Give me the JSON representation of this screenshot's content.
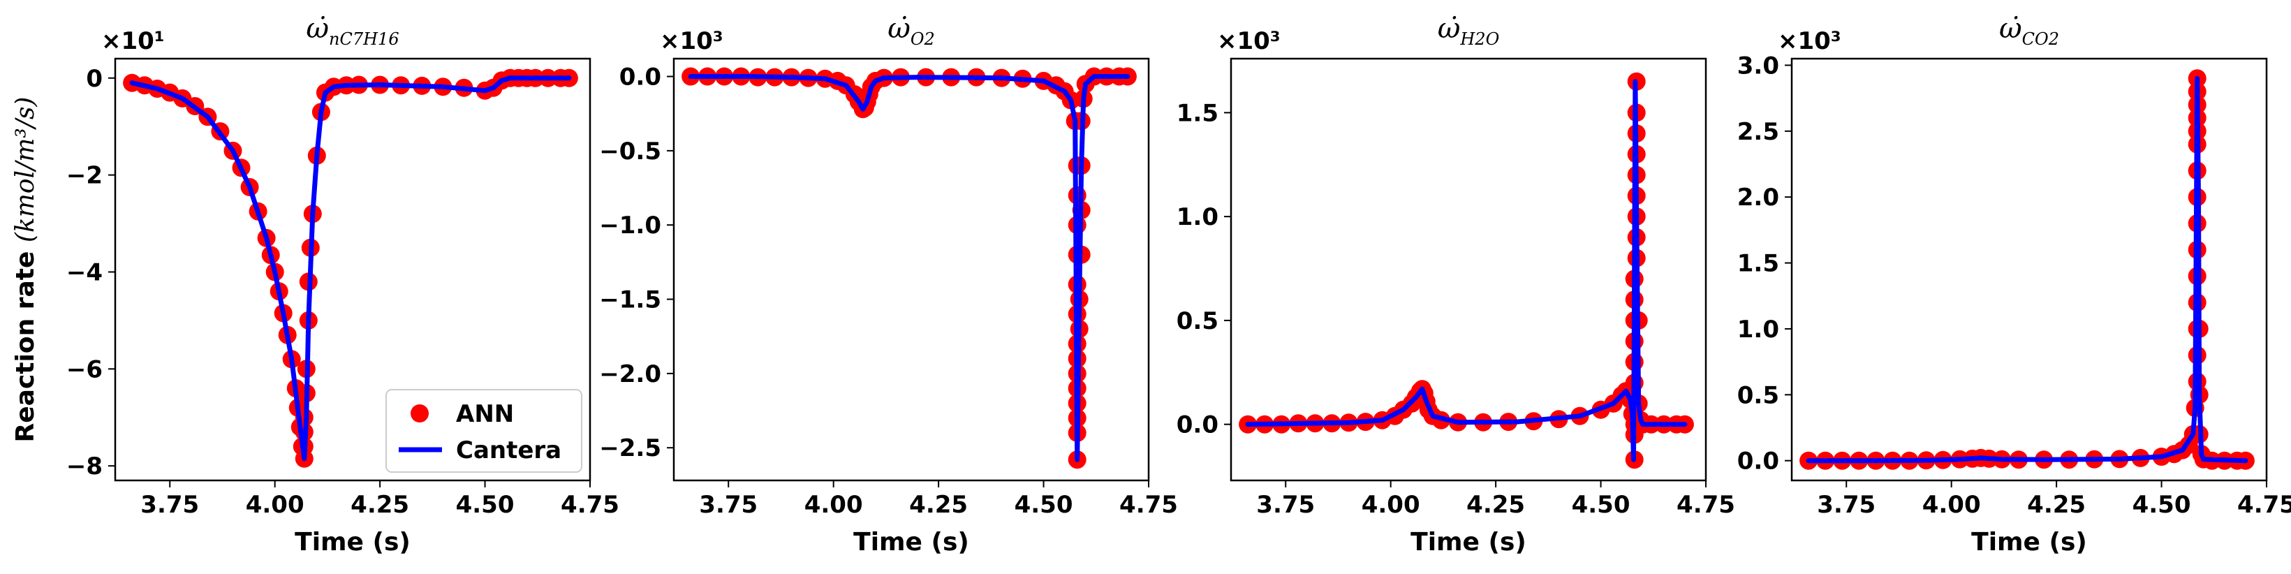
{
  "colors": {
    "ann": "#ff0000",
    "cantera": "#0000ff",
    "axis": "#000000",
    "background": "#ffffff"
  },
  "legend": {
    "location": "lower-right",
    "entries": [
      "ANN",
      "Cantera"
    ]
  },
  "chart_data": [
    {
      "type": "line",
      "title": "ω̇ nC7H16",
      "title_base": "ω̇",
      "title_sub": "nC7H16",
      "ylabel_text": "Reaction rate",
      "ylabel_unit": "(kmol/m³/s)",
      "xlabel": "Time (s)",
      "multiplier": "×10¹",
      "xlim": [
        3.62,
        4.75
      ],
      "ylim": [
        -8.3,
        0.4
      ],
      "xticks": [
        3.75,
        4.0,
        4.25,
        4.5,
        4.75
      ],
      "xtick_labels": [
        "3.75",
        "4.00",
        "4.25",
        "4.50",
        "4.75"
      ],
      "yticks": [
        0,
        -2,
        -4,
        -6,
        -8
      ],
      "ytick_labels": [
        "0",
        "−2",
        "−4",
        "−6",
        "−8"
      ],
      "series": [
        {
          "name": "ANN",
          "style": "markers",
          "x": [
            3.66,
            3.69,
            3.72,
            3.75,
            3.78,
            3.81,
            3.84,
            3.87,
            3.9,
            3.92,
            3.94,
            3.96,
            3.98,
            3.99,
            4.0,
            4.01,
            4.02,
            4.03,
            4.04,
            4.05,
            4.055,
            4.06,
            4.065,
            4.07,
            4.07,
            4.07,
            4.07,
            4.075,
            4.075,
            4.08,
            4.08,
            4.085,
            4.09,
            4.1,
            4.11,
            4.12,
            4.14,
            4.17,
            4.2,
            4.25,
            4.3,
            4.35,
            4.4,
            4.45,
            4.5,
            4.52,
            4.54,
            4.56,
            4.58,
            4.6,
            4.62,
            4.65,
            4.68,
            4.7
          ],
          "y": [
            -0.1,
            -0.15,
            -0.22,
            -0.3,
            -0.42,
            -0.58,
            -0.8,
            -1.1,
            -1.5,
            -1.85,
            -2.25,
            -2.75,
            -3.3,
            -3.65,
            -4.0,
            -4.4,
            -4.85,
            -5.3,
            -5.8,
            -6.4,
            -6.8,
            -7.2,
            -7.6,
            -7.85,
            -7.6,
            -7.3,
            -7.0,
            -6.5,
            -6.0,
            -5.0,
            -4.2,
            -3.5,
            -2.8,
            -1.6,
            -0.7,
            -0.3,
            -0.18,
            -0.15,
            -0.14,
            -0.14,
            -0.15,
            -0.16,
            -0.18,
            -0.2,
            -0.26,
            -0.2,
            -0.05,
            0.0,
            0.0,
            0.0,
            0.0,
            0.0,
            0.0,
            0.0
          ]
        },
        {
          "name": "Cantera",
          "style": "line",
          "x": [
            3.66,
            3.72,
            3.78,
            3.84,
            3.9,
            3.94,
            3.98,
            4.0,
            4.02,
            4.04,
            4.06,
            4.07,
            4.075,
            4.08,
            4.09,
            4.1,
            4.11,
            4.12,
            4.14,
            4.17,
            4.25,
            4.4,
            4.5,
            4.52,
            4.54,
            4.56,
            4.7
          ],
          "y": [
            -0.1,
            -0.22,
            -0.42,
            -0.8,
            -1.5,
            -2.25,
            -3.3,
            -4.0,
            -4.85,
            -5.8,
            -7.2,
            -7.85,
            -7.0,
            -5.0,
            -2.8,
            -1.6,
            -0.7,
            -0.3,
            -0.18,
            -0.15,
            -0.14,
            -0.18,
            -0.26,
            -0.2,
            -0.05,
            0.0,
            0.0
          ]
        }
      ]
    },
    {
      "type": "line",
      "title": "ω̇ O2",
      "title_base": "ω̇",
      "title_sub": "O2",
      "xlabel": "Time (s)",
      "multiplier": "×10³",
      "xlim": [
        3.62,
        4.75
      ],
      "ylim": [
        -2.72,
        0.12
      ],
      "xticks": [
        3.75,
        4.0,
        4.25,
        4.5,
        4.75
      ],
      "xtick_labels": [
        "3.75",
        "4.00",
        "4.25",
        "4.50",
        "4.75"
      ],
      "yticks": [
        0.0,
        -0.5,
        -1.0,
        -1.5,
        -2.0,
        -2.5
      ],
      "ytick_labels": [
        "0.0",
        "−0.5",
        "−1.0",
        "−1.5",
        "−2.0",
        "−2.5"
      ],
      "series": [
        {
          "name": "ANN",
          "style": "markers",
          "x": [
            3.66,
            3.7,
            3.74,
            3.78,
            3.82,
            3.86,
            3.9,
            3.94,
            3.98,
            4.01,
            4.03,
            4.05,
            4.06,
            4.07,
            4.075,
            4.08,
            4.085,
            4.09,
            4.1,
            4.12,
            4.16,
            4.22,
            4.28,
            4.34,
            4.4,
            4.45,
            4.5,
            4.53,
            4.55,
            4.565,
            4.575,
            4.58,
            4.58,
            4.58,
            4.58,
            4.58,
            4.58,
            4.58,
            4.58,
            4.58,
            4.58,
            4.58,
            4.58,
            4.58,
            4.58,
            4.585,
            4.585,
            4.59,
            4.59,
            4.59,
            4.59,
            4.595,
            4.6,
            4.62,
            4.65,
            4.68,
            4.7
          ],
          "y": [
            0.0,
            0.0,
            0.0,
            0.0,
            -0.005,
            -0.005,
            -0.005,
            -0.01,
            -0.015,
            -0.03,
            -0.06,
            -0.12,
            -0.17,
            -0.22,
            -0.21,
            -0.17,
            -0.12,
            -0.07,
            -0.03,
            -0.01,
            -0.005,
            -0.005,
            -0.005,
            -0.005,
            -0.01,
            -0.015,
            -0.03,
            -0.06,
            -0.1,
            -0.16,
            -0.3,
            -0.6,
            -0.8,
            -1.0,
            -1.2,
            -1.4,
            -1.6,
            -1.8,
            -2.0,
            -2.2,
            -2.4,
            -2.58,
            -2.3,
            -2.1,
            -1.9,
            -1.7,
            -1.5,
            -1.2,
            -0.9,
            -0.6,
            -0.3,
            -0.15,
            -0.05,
            0.0,
            0.0,
            0.0,
            0.0
          ]
        },
        {
          "name": "Cantera",
          "style": "line",
          "x": [
            3.66,
            3.8,
            3.9,
            3.98,
            4.03,
            4.06,
            4.07,
            4.08,
            4.09,
            4.1,
            4.12,
            4.2,
            4.4,
            4.5,
            4.55,
            4.565,
            4.575,
            4.58,
            4.585,
            4.59,
            4.595,
            4.6,
            4.62,
            4.7
          ],
          "y": [
            0.0,
            0.0,
            -0.005,
            -0.015,
            -0.06,
            -0.17,
            -0.22,
            -0.17,
            -0.07,
            -0.03,
            -0.01,
            -0.005,
            -0.01,
            -0.03,
            -0.1,
            -0.16,
            -0.3,
            -2.58,
            -1.5,
            -0.6,
            -0.15,
            -0.05,
            0.0,
            0.0
          ]
        }
      ]
    },
    {
      "type": "line",
      "title": "ω̇ H2O",
      "title_base": "ω̇",
      "title_sub": "H2O",
      "xlabel": "Time (s)",
      "multiplier": "×10³",
      "xlim": [
        3.62,
        4.75
      ],
      "ylim": [
        -0.27,
        1.76
      ],
      "xticks": [
        3.75,
        4.0,
        4.25,
        4.5,
        4.75
      ],
      "xtick_labels": [
        "3.75",
        "4.00",
        "4.25",
        "4.50",
        "4.75"
      ],
      "yticks": [
        0.0,
        0.5,
        1.0,
        1.5
      ],
      "ytick_labels": [
        "0.0",
        "0.5",
        "1.0",
        "1.5"
      ],
      "series": [
        {
          "name": "ANN",
          "style": "markers",
          "x": [
            3.66,
            3.7,
            3.74,
            3.78,
            3.82,
            3.86,
            3.9,
            3.94,
            3.98,
            4.01,
            4.03,
            4.05,
            4.06,
            4.07,
            4.075,
            4.08,
            4.085,
            4.09,
            4.1,
            4.12,
            4.16,
            4.22,
            4.28,
            4.34,
            4.4,
            4.45,
            4.5,
            4.53,
            4.55,
            4.56,
            4.57,
            4.575,
            4.58,
            4.58,
            4.58,
            4.58,
            4.58,
            4.58,
            4.58,
            4.58,
            4.58,
            4.58,
            4.585,
            4.585,
            4.585,
            4.585,
            4.585,
            4.585,
            4.585,
            4.585,
            4.585,
            4.59,
            4.59,
            4.595,
            4.6,
            4.62,
            4.65,
            4.68,
            4.7
          ],
          "y": [
            0.0,
            0.0,
            0.0,
            0.005,
            0.005,
            0.005,
            0.008,
            0.012,
            0.02,
            0.04,
            0.07,
            0.1,
            0.13,
            0.16,
            0.17,
            0.15,
            0.11,
            0.07,
            0.04,
            0.02,
            0.01,
            0.01,
            0.012,
            0.015,
            0.025,
            0.04,
            0.07,
            0.1,
            0.14,
            0.16,
            0.12,
            0.05,
            -0.05,
            -0.17,
            0.0,
            0.1,
            0.2,
            0.3,
            0.4,
            0.5,
            0.6,
            0.7,
            0.8,
            0.9,
            1.0,
            1.1,
            1.2,
            1.3,
            1.4,
            1.5,
            1.65,
            0.5,
            0.1,
            0.02,
            0.0,
            0.0,
            0.0,
            0.0,
            0.0
          ]
        },
        {
          "name": "Cantera",
          "style": "line",
          "x": [
            3.66,
            3.8,
            3.9,
            3.98,
            4.03,
            4.06,
            4.075,
            4.085,
            4.1,
            4.16,
            4.3,
            4.45,
            4.53,
            4.56,
            4.57,
            4.575,
            4.578,
            4.582,
            4.585,
            4.59,
            4.595,
            4.6,
            4.7
          ],
          "y": [
            0.0,
            0.005,
            0.008,
            0.02,
            0.07,
            0.13,
            0.17,
            0.11,
            0.04,
            0.01,
            0.012,
            0.04,
            0.1,
            0.16,
            0.12,
            0.05,
            -0.17,
            1.65,
            1.0,
            0.1,
            0.02,
            0.0,
            0.0
          ]
        }
      ]
    },
    {
      "type": "line",
      "title": "ω̇ CO2",
      "title_base": "ω̇",
      "title_sub": "CO2",
      "xlabel": "Time (s)",
      "multiplier": "×10³",
      "xlim": [
        3.62,
        4.75
      ],
      "ylim": [
        -0.15,
        3.05
      ],
      "xticks": [
        3.75,
        4.0,
        4.25,
        4.5,
        4.75
      ],
      "xtick_labels": [
        "3.75",
        "4.00",
        "4.25",
        "4.50",
        "4.75"
      ],
      "yticks": [
        0.0,
        0.5,
        1.0,
        1.5,
        2.0,
        2.5,
        3.0
      ],
      "ytick_labels": [
        "0.0",
        "0.5",
        "1.0",
        "1.5",
        "2.0",
        "2.5",
        "3.0"
      ],
      "series": [
        {
          "name": "ANN",
          "style": "markers",
          "x": [
            3.66,
            3.7,
            3.74,
            3.78,
            3.82,
            3.86,
            3.9,
            3.94,
            3.98,
            4.02,
            4.05,
            4.07,
            4.09,
            4.12,
            4.16,
            4.22,
            4.28,
            4.34,
            4.4,
            4.45,
            4.5,
            4.53,
            4.55,
            4.565,
            4.575,
            4.58,
            4.585,
            4.585,
            4.585,
            4.585,
            4.585,
            4.585,
            4.585,
            4.585,
            4.585,
            4.585,
            4.585,
            4.585,
            4.585,
            4.585,
            4.585,
            4.59,
            4.59,
            4.59,
            4.595,
            4.6,
            4.62,
            4.65,
            4.68,
            4.7
          ],
          "y": [
            0.0,
            0.0,
            0.0,
            0.0,
            0.0,
            0.0,
            0.0,
            0.002,
            0.005,
            0.01,
            0.015,
            0.02,
            0.015,
            0.01,
            0.008,
            0.008,
            0.008,
            0.01,
            0.012,
            0.02,
            0.03,
            0.05,
            0.08,
            0.12,
            0.2,
            0.4,
            0.6,
            0.8,
            1.0,
            1.2,
            1.4,
            1.6,
            1.8,
            2.0,
            2.2,
            2.4,
            2.6,
            2.8,
            2.9,
            2.7,
            2.5,
            1.0,
            0.5,
            0.2,
            0.05,
            0.01,
            0.0,
            0.0,
            0.0,
            0.0
          ]
        },
        {
          "name": "Cantera",
          "style": "line",
          "x": [
            3.66,
            3.8,
            3.94,
            4.02,
            4.07,
            4.12,
            4.22,
            4.4,
            4.5,
            4.55,
            4.575,
            4.58,
            4.585,
            4.588,
            4.59,
            4.595,
            4.6,
            4.7
          ],
          "y": [
            0.0,
            0.0,
            0.002,
            0.01,
            0.02,
            0.01,
            0.008,
            0.012,
            0.03,
            0.08,
            0.2,
            0.4,
            2.9,
            2.0,
            0.5,
            0.05,
            0.01,
            0.0
          ]
        }
      ]
    }
  ]
}
